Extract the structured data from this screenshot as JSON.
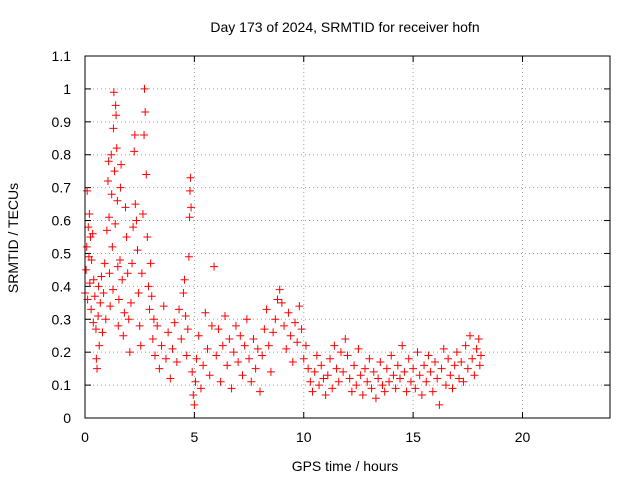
{
  "chart_data": {
    "type": "scatter",
    "title": "Day 173 of 2024, SRMTID for receiver hofn",
    "xlabel": "GPS time / hours",
    "ylabel": "SRMTID / TECUs",
    "xlim": [
      0,
      24
    ],
    "ylim": [
      0,
      1.1
    ],
    "x_ticks": [
      0,
      5,
      10,
      15,
      20
    ],
    "x_tick_labels": [
      "0",
      "5",
      "10",
      "15",
      "20"
    ],
    "y_ticks": [
      0,
      0.1,
      0.2,
      0.3,
      0.4,
      0.5,
      0.6,
      0.7,
      0.8,
      0.9,
      1.0,
      1.1
    ],
    "y_tick_labels": [
      "0",
      "0.1",
      "0.2",
      "0.3",
      "0.4",
      "0.5",
      "0.6",
      "0.7",
      "0.8",
      "0.9",
      "1",
      "1.1"
    ],
    "grid": true,
    "legend": "none",
    "marker": "plus",
    "series": [
      {
        "name": "SRMTID",
        "color": "#ff0000",
        "points": [
          [
            0.0,
            0.38
          ],
          [
            0.05,
            0.45
          ],
          [
            0.08,
            0.52
          ],
          [
            0.1,
            0.69
          ],
          [
            0.12,
            0.36
          ],
          [
            0.15,
            0.58
          ],
          [
            0.18,
            0.49
          ],
          [
            0.2,
            0.62
          ],
          [
            0.22,
            0.41
          ],
          [
            0.25,
            0.55
          ],
          [
            0.28,
            0.33
          ],
          [
            0.3,
            0.48
          ],
          [
            0.35,
            0.56
          ],
          [
            0.38,
            0.29
          ],
          [
            0.4,
            0.42
          ],
          [
            0.45,
            0.37
          ],
          [
            0.5,
            0.27
          ],
          [
            0.52,
            0.18
          ],
          [
            0.55,
            0.15
          ],
          [
            0.6,
            0.31
          ],
          [
            0.62,
            0.4
          ],
          [
            0.65,
            0.22
          ],
          [
            0.7,
            0.35
          ],
          [
            0.75,
            0.43
          ],
          [
            0.8,
            0.26
          ],
          [
            0.85,
            0.38
          ],
          [
            0.9,
            0.47
          ],
          [
            0.95,
            0.3
          ],
          [
            1.0,
            0.57
          ],
          [
            1.05,
            0.72
          ],
          [
            1.08,
            0.78
          ],
          [
            1.1,
            0.61
          ],
          [
            1.12,
            0.44
          ],
          [
            1.15,
            0.34
          ],
          [
            1.2,
            0.8
          ],
          [
            1.22,
            0.68
          ],
          [
            1.25,
            0.52
          ],
          [
            1.28,
            0.39
          ],
          [
            1.3,
            0.88
          ],
          [
            1.32,
            0.99
          ],
          [
            1.35,
            0.75
          ],
          [
            1.38,
            0.59
          ],
          [
            1.4,
            0.95
          ],
          [
            1.42,
            0.92
          ],
          [
            1.45,
            0.82
          ],
          [
            1.48,
            0.66
          ],
          [
            1.5,
            0.46
          ],
          [
            1.52,
            0.28
          ],
          [
            1.55,
            0.36
          ],
          [
            1.6,
            0.48
          ],
          [
            1.62,
            0.7
          ],
          [
            1.65,
            0.77
          ],
          [
            1.7,
            0.42
          ],
          [
            1.75,
            0.25
          ],
          [
            1.8,
            0.32
          ],
          [
            1.85,
            0.64
          ],
          [
            1.9,
            0.55
          ],
          [
            1.95,
            0.44
          ],
          [
            2.0,
            0.3
          ],
          [
            2.05,
            0.2
          ],
          [
            2.1,
            0.35
          ],
          [
            2.15,
            0.47
          ],
          [
            2.2,
            0.58
          ],
          [
            2.25,
            0.81
          ],
          [
            2.28,
            0.86
          ],
          [
            2.3,
            0.65
          ],
          [
            2.35,
            0.6
          ],
          [
            2.4,
            0.51
          ],
          [
            2.45,
            0.38
          ],
          [
            2.5,
            0.28
          ],
          [
            2.55,
            0.22
          ],
          [
            2.6,
            0.44
          ],
          [
            2.65,
            0.62
          ],
          [
            2.7,
            0.86
          ],
          [
            2.72,
            1.0
          ],
          [
            2.75,
            0.93
          ],
          [
            2.8,
            0.74
          ],
          [
            2.85,
            0.55
          ],
          [
            2.9,
            0.4
          ],
          [
            2.95,
            0.33
          ],
          [
            3.0,
            0.47
          ],
          [
            3.05,
            0.37
          ],
          [
            3.1,
            0.24
          ],
          [
            3.15,
            0.3
          ],
          [
            3.2,
            0.19
          ],
          [
            3.3,
            0.28
          ],
          [
            3.4,
            0.15
          ],
          [
            3.5,
            0.22
          ],
          [
            3.6,
            0.34
          ],
          [
            3.7,
            0.18
          ],
          [
            3.8,
            0.26
          ],
          [
            3.9,
            0.12
          ],
          [
            4.0,
            0.21
          ],
          [
            4.1,
            0.29
          ],
          [
            4.2,
            0.17
          ],
          [
            4.3,
            0.33
          ],
          [
            4.4,
            0.24
          ],
          [
            4.5,
            0.38
          ],
          [
            4.55,
            0.42
          ],
          [
            4.6,
            0.31
          ],
          [
            4.65,
            0.19
          ],
          [
            4.7,
            0.27
          ],
          [
            4.75,
            0.49
          ],
          [
            4.78,
            0.61
          ],
          [
            4.8,
            0.69
          ],
          [
            4.82,
            0.73
          ],
          [
            4.85,
            0.64
          ],
          [
            4.9,
            0.14
          ],
          [
            4.95,
            0.07
          ],
          [
            5.0,
            0.04
          ],
          [
            5.05,
            0.11
          ],
          [
            5.1,
            0.18
          ],
          [
            5.2,
            0.25
          ],
          [
            5.3,
            0.09
          ],
          [
            5.4,
            0.16
          ],
          [
            5.5,
            0.32
          ],
          [
            5.6,
            0.21
          ],
          [
            5.7,
            0.13
          ],
          [
            5.8,
            0.28
          ],
          [
            5.9,
            0.46
          ],
          [
            6.0,
            0.19
          ],
          [
            6.1,
            0.27
          ],
          [
            6.2,
            0.11
          ],
          [
            6.3,
            0.22
          ],
          [
            6.4,
            0.31
          ],
          [
            6.5,
            0.16
          ],
          [
            6.6,
            0.24
          ],
          [
            6.7,
            0.09
          ],
          [
            6.8,
            0.2
          ],
          [
            6.9,
            0.28
          ],
          [
            7.0,
            0.17
          ],
          [
            7.1,
            0.25
          ],
          [
            7.2,
            0.13
          ],
          [
            7.3,
            0.22
          ],
          [
            7.4,
            0.3
          ],
          [
            7.5,
            0.18
          ],
          [
            7.6,
            0.11
          ],
          [
            7.7,
            0.24
          ],
          [
            7.8,
            0.15
          ],
          [
            7.9,
            0.21
          ],
          [
            8.0,
            0.08
          ],
          [
            8.1,
            0.19
          ],
          [
            8.2,
            0.27
          ],
          [
            8.3,
            0.33
          ],
          [
            8.4,
            0.22
          ],
          [
            8.5,
            0.14
          ],
          [
            8.6,
            0.26
          ],
          [
            8.7,
            0.3
          ],
          [
            8.8,
            0.36
          ],
          [
            8.9,
            0.39
          ],
          [
            9.0,
            0.35
          ],
          [
            9.1,
            0.28
          ],
          [
            9.2,
            0.21
          ],
          [
            9.3,
            0.32
          ],
          [
            9.4,
            0.25
          ],
          [
            9.5,
            0.17
          ],
          [
            9.6,
            0.29
          ],
          [
            9.7,
            0.23
          ],
          [
            9.8,
            0.34
          ],
          [
            9.9,
            0.27
          ],
          [
            10.0,
            0.18
          ],
          [
            10.1,
            0.22
          ],
          [
            10.2,
            0.15
          ],
          [
            10.3,
            0.11
          ],
          [
            10.4,
            0.08
          ],
          [
            10.5,
            0.14
          ],
          [
            10.6,
            0.19
          ],
          [
            10.7,
            0.1
          ],
          [
            10.8,
            0.16
          ],
          [
            10.9,
            0.12
          ],
          [
            11.0,
            0.07
          ],
          [
            11.1,
            0.13
          ],
          [
            11.2,
            0.18
          ],
          [
            11.3,
            0.09
          ],
          [
            11.4,
            0.22
          ],
          [
            11.5,
            0.15
          ],
          [
            11.6,
            0.11
          ],
          [
            11.7,
            0.2
          ],
          [
            11.8,
            0.14
          ],
          [
            11.9,
            0.24
          ],
          [
            12.0,
            0.19
          ],
          [
            12.1,
            0.12
          ],
          [
            12.2,
            0.08
          ],
          [
            12.3,
            0.16
          ],
          [
            12.4,
            0.1
          ],
          [
            12.5,
            0.21
          ],
          [
            12.6,
            0.13
          ],
          [
            12.7,
            0.07
          ],
          [
            12.8,
            0.15
          ],
          [
            12.9,
            0.11
          ],
          [
            13.0,
            0.18
          ],
          [
            13.1,
            0.09
          ],
          [
            13.2,
            0.14
          ],
          [
            13.3,
            0.06
          ],
          [
            13.4,
            0.12
          ],
          [
            13.5,
            0.17
          ],
          [
            13.6,
            0.1
          ],
          [
            13.7,
            0.08
          ],
          [
            13.8,
            0.15
          ],
          [
            13.9,
            0.11
          ],
          [
            14.0,
            0.19
          ],
          [
            14.1,
            0.13
          ],
          [
            14.2,
            0.09
          ],
          [
            14.3,
            0.16
          ],
          [
            14.4,
            0.12
          ],
          [
            14.5,
            0.22
          ],
          [
            14.6,
            0.14
          ],
          [
            14.7,
            0.08
          ],
          [
            14.8,
            0.18
          ],
          [
            14.9,
            0.11
          ],
          [
            15.0,
            0.15
          ],
          [
            15.1,
            0.09
          ],
          [
            15.2,
            0.2
          ],
          [
            15.3,
            0.13
          ],
          [
            15.4,
            0.07
          ],
          [
            15.5,
            0.16
          ],
          [
            15.6,
            0.11
          ],
          [
            15.7,
            0.19
          ],
          [
            15.8,
            0.14
          ],
          [
            15.9,
            0.08
          ],
          [
            16.0,
            0.17
          ],
          [
            16.1,
            0.12
          ],
          [
            16.2,
            0.04
          ],
          [
            16.3,
            0.15
          ],
          [
            16.4,
            0.21
          ],
          [
            16.5,
            0.1
          ],
          [
            16.6,
            0.18
          ],
          [
            16.7,
            0.13
          ],
          [
            16.8,
            0.09
          ],
          [
            16.9,
            0.16
          ],
          [
            17.0,
            0.2
          ],
          [
            17.1,
            0.12
          ],
          [
            17.2,
            0.17
          ],
          [
            17.3,
            0.11
          ],
          [
            17.4,
            0.22
          ],
          [
            17.5,
            0.15
          ],
          [
            17.6,
            0.25
          ],
          [
            17.7,
            0.18
          ],
          [
            17.8,
            0.13
          ],
          [
            17.9,
            0.21
          ],
          [
            18.0,
            0.24
          ],
          [
            18.05,
            0.16
          ],
          [
            18.1,
            0.19
          ]
        ]
      }
    ]
  }
}
